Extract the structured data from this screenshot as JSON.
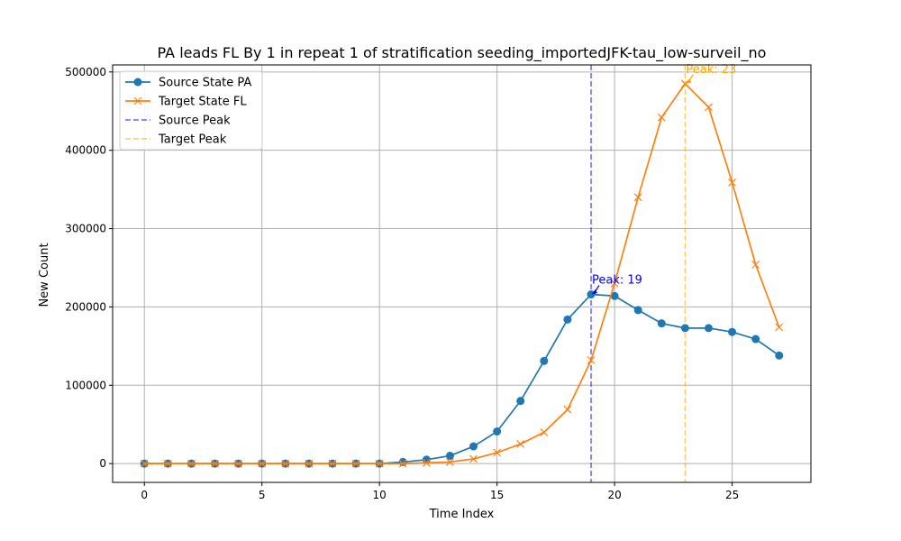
{
  "chart_data": {
    "type": "line",
    "title": "PA leads FL By 1 in repeat 1 of stratification seeding_importedJFK-tau_low-surveil_no",
    "xlabel": "Time Index",
    "ylabel": "New Count",
    "xlim": [
      -1.35,
      28.35
    ],
    "ylim": [
      -24000,
      509000
    ],
    "xticks": [
      0,
      5,
      10,
      15,
      20,
      25
    ],
    "yticks": [
      0,
      100000,
      200000,
      300000,
      400000,
      500000
    ],
    "grid": true,
    "legend_position": "upper-left",
    "x": [
      0,
      1,
      2,
      3,
      4,
      5,
      6,
      7,
      8,
      9,
      10,
      11,
      12,
      13,
      14,
      15,
      16,
      17,
      18,
      19,
      20,
      21,
      22,
      23,
      24,
      25,
      26,
      27
    ],
    "series": [
      {
        "name": "Source State PA",
        "color": "#1f77b4",
        "marker": "circle",
        "values": [
          0,
          0,
          0,
          0,
          0,
          0,
          0,
          0,
          0,
          0,
          0,
          2000,
          5000,
          10000,
          22000,
          41000,
          80000,
          131000,
          184000,
          216000,
          214000,
          196000,
          179000,
          173000,
          173000,
          168000,
          159000,
          138000
        ]
      },
      {
        "name": "Target State FL",
        "color": "#ff7f0e",
        "marker": "x",
        "values": [
          0,
          0,
          0,
          0,
          0,
          0,
          0,
          0,
          0,
          0,
          0,
          0,
          1000,
          2000,
          6000,
          14000,
          25000,
          40000,
          69000,
          132000,
          230000,
          340000,
          442000,
          485000,
          455000,
          359000,
          254000,
          174000
        ]
      }
    ],
    "reference_lines": [
      {
        "name": "Source Peak",
        "x": 19,
        "color": "#0000ff"
      },
      {
        "name": "Target Peak",
        "x": 23,
        "color": "#ffa500"
      }
    ],
    "annotations": [
      {
        "text": "Peak: 19",
        "x": 19,
        "y": 216000,
        "color": "#0000ff"
      },
      {
        "text": "Peak: 23",
        "x": 23,
        "y": 485000,
        "color": "#ffa500"
      }
    ]
  }
}
